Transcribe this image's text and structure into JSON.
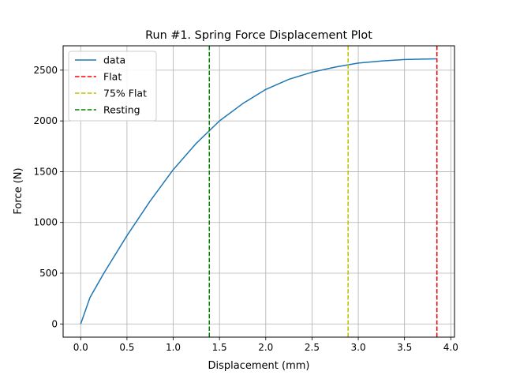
{
  "chart_data": {
    "type": "line",
    "title": "Run #1. Spring Force Displacement Plot",
    "xlabel": "Displacement (mm)",
    "ylabel": "Force (N)",
    "xlim": [
      -0.19,
      4.04
    ],
    "ylim": [
      -130,
      2740
    ],
    "xticks": [
      0.0,
      0.5,
      1.0,
      1.5,
      2.0,
      2.5,
      3.0,
      3.5,
      4.0
    ],
    "xtick_labels": [
      "0.0",
      "0.5",
      "1.0",
      "1.5",
      "2.0",
      "2.5",
      "3.0",
      "3.5",
      "4.0"
    ],
    "yticks": [
      0,
      500,
      1000,
      1500,
      2000,
      2500
    ],
    "ytick_labels": [
      "0",
      "500",
      "1000",
      "1500",
      "2000",
      "2500"
    ],
    "grid": true,
    "legend_position": "upper-left",
    "series": [
      {
        "name": "data",
        "style": "solid",
        "color": "#1f77b4",
        "x": [
          0.0,
          0.1,
          0.25,
          0.5,
          0.75,
          1.0,
          1.25,
          1.5,
          1.75,
          2.0,
          2.25,
          2.5,
          2.75,
          3.0,
          3.25,
          3.5,
          3.75,
          3.85
        ],
        "y": [
          0,
          260,
          500,
          870,
          1210,
          1520,
          1780,
          2000,
          2170,
          2310,
          2410,
          2480,
          2530,
          2570,
          2590,
          2605,
          2610,
          2612
        ]
      },
      {
        "name": "Flat",
        "style": "dashed",
        "color": "#ff0000",
        "vline_x": 3.85
      },
      {
        "name": "75% Flat",
        "style": "dashed",
        "color": "#bfbf00",
        "vline_x": 2.89
      },
      {
        "name": "Resting",
        "style": "dashed",
        "color": "#008000",
        "vline_x": 1.39
      }
    ]
  }
}
